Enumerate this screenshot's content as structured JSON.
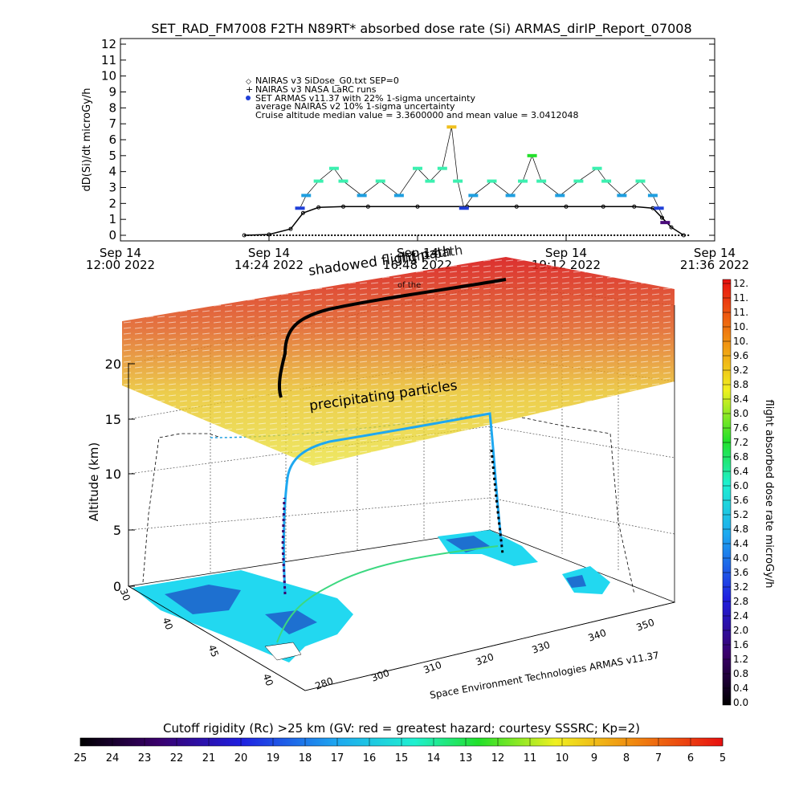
{
  "title": "SET_RAD_FM7008  F2TH N89RT* absorbed dose rate (Si) ARMAS_dirIP_Report_07008",
  "top_chart": {
    "ylabel": "dD(Si)/dt microGy/h",
    "ylim": [
      0,
      12
    ],
    "y_ticks": [
      "0",
      "1",
      "2",
      "3",
      "4",
      "5",
      "6",
      "7",
      "8",
      "9",
      "10",
      "11",
      "12"
    ],
    "x_ticks": [
      {
        "line1": "Sep 14",
        "line2": "12:00 2022"
      },
      {
        "line1": "Sep 14",
        "line2": "14:24 2022"
      },
      {
        "line1": "Sep 14",
        "line2": "16:48 2022"
      },
      {
        "line1": "Sep 14",
        "line2": "19:12 2022"
      },
      {
        "line1": "Sep 14",
        "line2": "21:36 2022"
      }
    ],
    "legend": [
      "NAIRAS v3 SiDose_G0.txt SEP=0",
      "NAIRAS v3 NASA LaRC runs",
      "SET ARMAS v11.37 with 22% 1-sigma uncertainty",
      "average NAIRAS v2 10% 1-sigma uncertainty",
      "Cruise altitude median value = 3.3600000 and mean value = 3.0412048"
    ]
  },
  "chart_data": [
    {
      "type": "scatter",
      "title": "SET_RAD_FM7008  F2TH N89RT* absorbed dose rate (Si) ARMAS_dirIP_Report_07008",
      "ylabel": "dD(Si)/dt microGy/h",
      "xlim": [
        12.0,
        21.6
      ],
      "ylim": [
        0,
        12
      ],
      "x_unit": "hour of day, Sep 14 2022",
      "series": [
        {
          "name": "NAIRAS v3 SiDose_G0.txt SEP=0",
          "x": [
            14.0,
            14.4,
            14.75,
            14.95,
            15.2,
            15.6,
            16.0,
            16.8,
            17.6,
            18.4,
            19.2,
            19.8,
            20.3,
            20.6,
            20.75,
            20.9,
            21.1
          ],
          "y": [
            0.0,
            0.05,
            0.4,
            1.4,
            1.75,
            1.8,
            1.8,
            1.8,
            1.8,
            1.8,
            1.8,
            1.8,
            1.8,
            1.7,
            1.1,
            0.5,
            0.0
          ]
        },
        {
          "name": "SET ARMAS v11.37 with 22% 1-sigma uncertainty",
          "x": [
            14.9,
            15.0,
            15.2,
            15.45,
            15.6,
            15.9,
            16.2,
            16.5,
            16.8,
            17.0,
            17.2,
            17.35,
            17.45,
            17.55,
            17.7,
            18.0,
            18.3,
            18.5,
            18.65,
            18.8,
            19.1,
            19.4,
            19.7,
            19.85,
            20.1,
            20.4,
            20.6,
            20.7,
            20.8
          ],
          "y": [
            1.7,
            2.5,
            3.4,
            4.2,
            3.4,
            2.5,
            3.4,
            2.5,
            4.2,
            3.4,
            4.2,
            6.8,
            3.4,
            1.7,
            2.5,
            3.4,
            2.5,
            3.4,
            5.0,
            3.4,
            2.5,
            3.4,
            4.2,
            3.4,
            2.5,
            3.4,
            2.5,
            1.7,
            0.8
          ]
        }
      ]
    },
    {
      "type": "scatter",
      "ylabel": "Altitude (km)",
      "ylim": [
        0,
        20
      ],
      "xlim": [
        280,
        360
      ],
      "y_ticks": [
        "0",
        "5",
        "10",
        "15",
        "20"
      ],
      "x_ticks": [
        "280",
        "300",
        "310",
        "320",
        "330",
        "340",
        "350"
      ],
      "lat_ticks": [
        "30",
        "40",
        "45",
        "40"
      ]
    }
  ],
  "lower_chart": {
    "altitude_label": "Altitude (km)",
    "altitude_ticks": [
      "0",
      "5",
      "10",
      "15",
      "20"
    ],
    "lon_ticks": [
      "280",
      "300",
      "310",
      "320",
      "330",
      "340",
      "350"
    ],
    "lat_ticks": [
      "30",
      "40",
      "45",
      "40"
    ],
    "annotations": {
      "shadowed": "shadowed flight path",
      "precipitating": "precipitating particles",
      "overlap": "flight path",
      "overlap2": "of the",
      "credit": "Space Environment Technologies ARMAS v11.37"
    }
  },
  "right_colorbar": {
    "label": "flight absorbed dose rate microGy/h",
    "ticks": [
      "12.",
      "11.",
      "11.",
      "10.",
      "10.",
      "9.6",
      "9.2",
      "8.8",
      "8.4",
      "8.0",
      "7.6",
      "7.2",
      "6.8",
      "6.4",
      "6.0",
      "5.6",
      "5.2",
      "4.8",
      "4.4",
      "4.0",
      "3.6",
      "3.2",
      "2.8",
      "2.4",
      "2.0",
      "1.6",
      "1.2",
      "0.8",
      "0.4",
      "0.0"
    ]
  },
  "bottom_colorbar": {
    "title": "Cutoff rigidity (Rc) >25 km (GV: red = greatest hazard; courtesy SSSRC; Kp=2)",
    "ticks": [
      "25",
      "24",
      "23",
      "22",
      "21",
      "20",
      "19",
      "18",
      "17",
      "16",
      "15",
      "14",
      "13",
      "12",
      "11",
      "10",
      "9",
      "8",
      "7",
      "6",
      "5"
    ]
  },
  "colors": {
    "nairas": "#000000",
    "armas_low": "#1f3fd8",
    "armas_mid": "#1e9fe0",
    "armas_high": "#3cf0b0",
    "land": "#22d8f0",
    "land_dark": "#1e56c8"
  }
}
